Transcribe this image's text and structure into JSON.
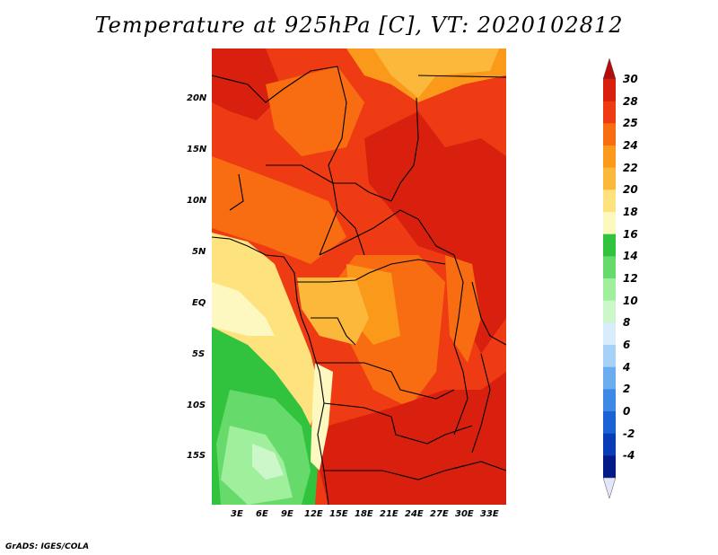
{
  "title": "Temperature at 925hPa [C], VT: 2020102812",
  "credit": "GrADS: IGES/COLA",
  "lat_ticks": [
    "20N",
    "15N",
    "10N",
    "5N",
    "EQ",
    "5S",
    "10S",
    "15S"
  ],
  "lon_ticks": [
    "3E",
    "6E",
    "9E",
    "12E",
    "15E",
    "18E",
    "21E",
    "24E",
    "27E",
    "30E",
    "33E"
  ],
  "colorbar": {
    "labels": [
      "30",
      "28",
      "25",
      "24",
      "22",
      "20",
      "18",
      "16",
      "14",
      "12",
      "10",
      "8",
      "6",
      "4",
      "2",
      "0",
      "-2",
      "-4"
    ],
    "colors": [
      "#d9200f",
      "#ef3b14",
      "#f86d12",
      "#fb9a1a",
      "#fcb83a",
      "#fde27e",
      "#fdf8c0",
      "#31c23e",
      "#66db6c",
      "#9fef9c",
      "#cbf7c9",
      "#d8ecfb",
      "#a7d2f7",
      "#6aaeef",
      "#3c8ae6",
      "#1a62d6",
      "#0a3cb8",
      "#041a86"
    ],
    "tip_top": "#b40c0c",
    "tip_bottom": "#e3e5fa"
  },
  "map_colors": {
    "hot": "#d9200f",
    "warm": "#ef3b14",
    "orange": "#f86d12",
    "amber": "#fb9a1a",
    "tan": "#fcb83a",
    "pale": "#fde27e",
    "cream": "#fdf8c0",
    "green": "#31c23e",
    "lightgreen": "#66db6c",
    "mint": "#9fef9c",
    "palemint": "#cbf7c9"
  }
}
